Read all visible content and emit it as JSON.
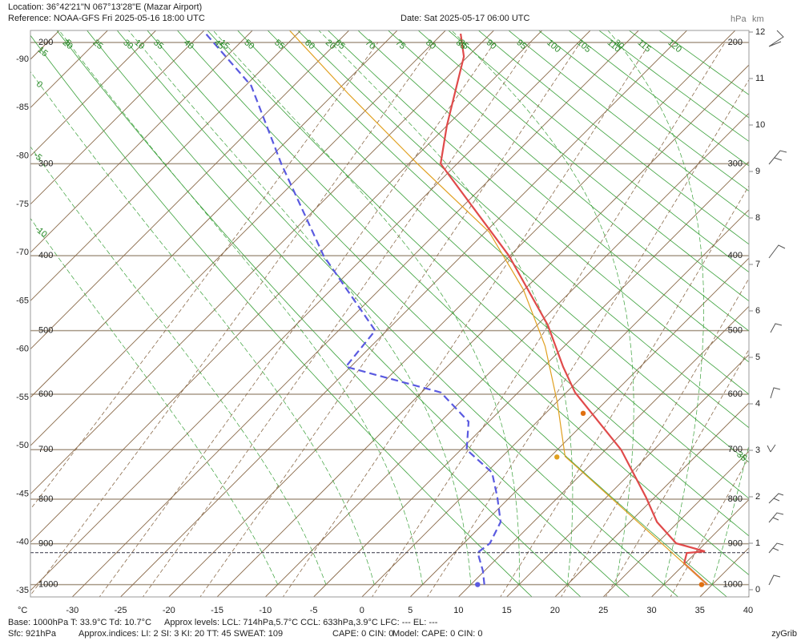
{
  "header": {
    "location": "Location:  36°42'21\"N  067°13'28\"E (Mazar Airport)",
    "reference": "Reference: NOAA-GFS Fri 2025-05-16 18:00 UTC",
    "date": "Date: Sat 2025-05-17 06:00 UTC"
  },
  "chart_data": {
    "type": "skewt",
    "xlim": [
      -35,
      40
    ],
    "xticks": [
      -30,
      -25,
      -20,
      -15,
      -10,
      -5,
      0,
      5,
      10,
      15,
      20,
      25,
      30,
      35,
      40
    ],
    "x_label": "°C",
    "left_ticks": [
      -90,
      -85,
      -80,
      -75,
      -70,
      -65,
      -60,
      -55,
      -50,
      -45,
      -40,
      -35
    ],
    "yticks": [
      200,
      300,
      400,
      500,
      600,
      700,
      800,
      900,
      1000
    ],
    "y_label": "hPa",
    "y2lim": [
      0,
      12
    ],
    "y2ticks": [
      0,
      1,
      2,
      3,
      4,
      5,
      6,
      7,
      8,
      9,
      10,
      11,
      12
    ],
    "y2_label": "km",
    "dry_adiabats": [
      15,
      20,
      25,
      30,
      35,
      40,
      45,
      50,
      55,
      60,
      65,
      70,
      75,
      80,
      85,
      90,
      95,
      100,
      105,
      110,
      115,
      120
    ],
    "moist_adiabats": [
      -10,
      -5,
      0,
      5,
      10,
      15,
      20,
      25,
      30,
      35
    ],
    "mixing_ratios": [
      0.1,
      0.2,
      0.4,
      0.6,
      1,
      2,
      4,
      6,
      10,
      15,
      20,
      30
    ],
    "surface_pressure": 921,
    "series": [
      {
        "color": "#e04a4a",
        "pressure": [
          1000,
          947,
          922,
          918,
          899,
          850,
          796,
          700,
          597,
          555,
          492,
          400,
          300,
          265,
          210,
          194
        ],
        "values": [
          34.5,
          29.9,
          29.1,
          30.8,
          27.0,
          22.8,
          19.1,
          11.6,
          0.9,
          -3.0,
          -8.9,
          -20.1,
          -36.7,
          -40.0,
          -45.4,
          -48.1
        ]
      },
      {
        "color": "#5a5ae0",
        "pressure": [
          1000,
          965,
          921,
          899,
          850,
          796,
          745,
          700,
          648,
          597,
          555,
          500,
          400,
          300,
          232,
          194
        ],
        "values": [
          11.4,
          9.8,
          7.4,
          7.7,
          6.6,
          3.7,
          0.6,
          -4.4,
          -7.1,
          -13.0,
          -25.5,
          -26.2,
          -39.3,
          -53.2,
          -64.4,
          -74.5
        ]
      },
      {
        "color": "#e0a020",
        "pressure": [
          1000,
          713,
          614,
          523,
          443,
          372,
          300,
          238,
          192
        ],
        "values": [
          34.5,
          6.5,
          0.1,
          -7.0,
          -15.1,
          -24.6,
          -39.1,
          -53.6,
          -66.1
        ]
      }
    ],
    "points": [
      {
        "color": "#e07010",
        "pressure": 1000,
        "value": 33.9
      },
      {
        "color": "#5a5ae0",
        "pressure": 1000,
        "value": 10.7
      },
      {
        "color": "#e0a020",
        "pressure": 714,
        "value": 5.7
      },
      {
        "color": "#e07010",
        "pressure": 633,
        "value": 3.9
      }
    ]
  },
  "footer": {
    "base": "Base: 1000hPa  T: 33.9°C  Td: 10.7°C",
    "levels": "Approx levels:  LCL: 714hPa,5.7°C   CCL: 633hPa,3.9°C   LFC: ---   EL: ---",
    "sfc": "Sfc: 921hPa",
    "indices": "Approx.indices:  LI: 2   SI: 3   KI: 20   TT: 45   SWEAT: 109",
    "cape": "CAPE: 0  CIN: 0",
    "model": "Model: CAPE: 0 CIN: 0",
    "brand": "zyGrib"
  }
}
